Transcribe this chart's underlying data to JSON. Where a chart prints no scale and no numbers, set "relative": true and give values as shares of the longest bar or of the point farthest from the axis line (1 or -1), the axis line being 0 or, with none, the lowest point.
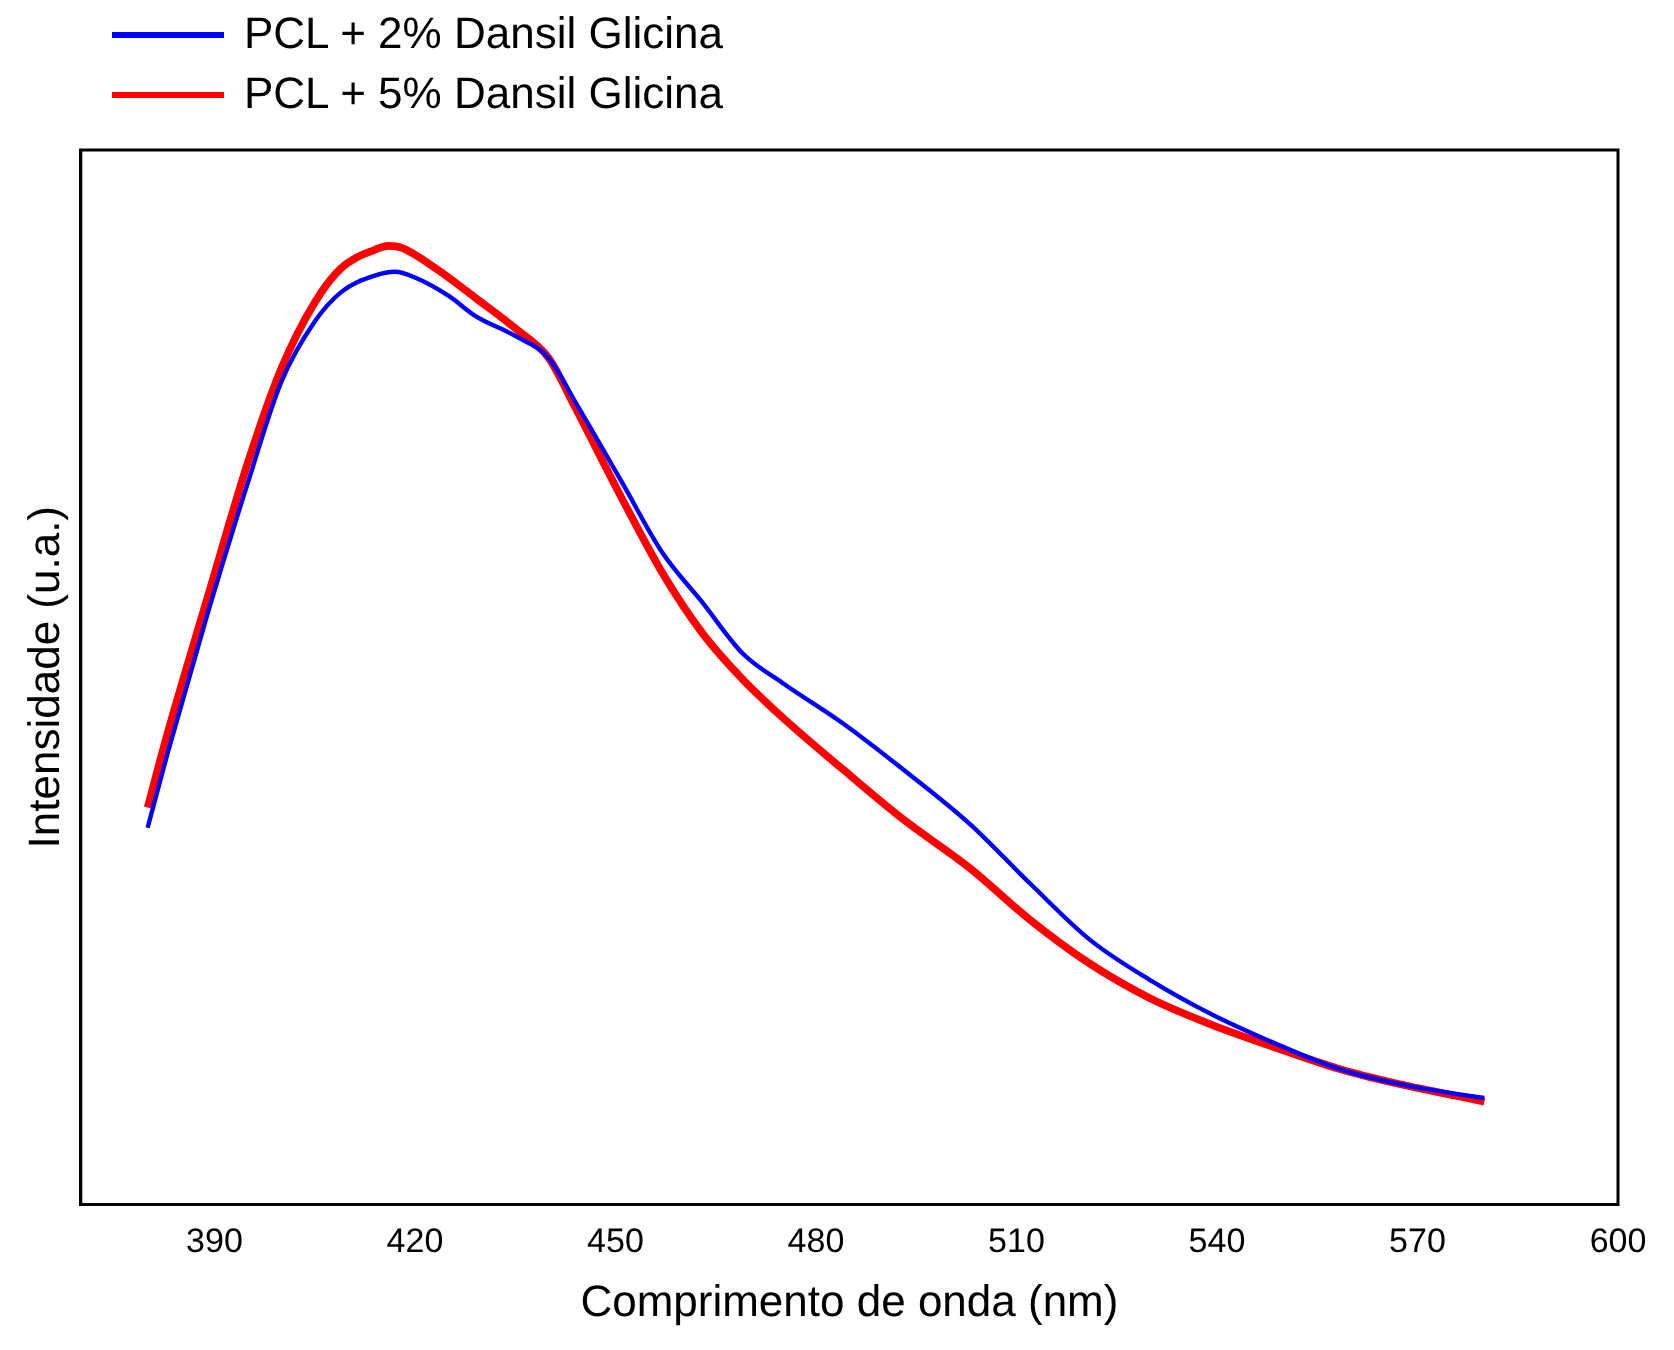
{
  "chart_data": {
    "type": "line",
    "xlabel": "Comprimento de onda (nm)",
    "ylabel": "Intensidade (u.a.)",
    "relative": true,
    "xlim": [
      370,
      600
    ],
    "xticks": [
      390,
      420,
      450,
      480,
      510,
      540,
      570,
      600
    ],
    "grid": false,
    "legend": "top left",
    "marker": "none",
    "line_style": "solid",
    "series": [
      {
        "name": "PCL + 2% Dansil Glicina",
        "color": "#0000ff",
        "x": [
          380,
          383,
          389,
          395,
          400,
          405,
          409,
          414,
          417,
          420,
          425,
          429,
          435,
          440,
          444,
          451,
          457,
          463,
          469,
          475,
          484,
          493,
          503,
          512,
          521,
          530,
          539,
          549,
          558,
          567,
          576,
          580
        ],
        "values": [
          0.393,
          0.471,
          0.617,
          0.753,
          0.858,
          0.921,
          0.952,
          0.969,
          0.973,
          0.967,
          0.948,
          0.927,
          0.906,
          0.883,
          0.837,
          0.753,
          0.68,
          0.628,
          0.575,
          0.544,
          0.502,
          0.454,
          0.397,
          0.335,
          0.276,
          0.234,
          0.199,
          0.167,
          0.142,
          0.126,
          0.115,
          0.111
        ]
      },
      {
        "name": "PCL + 5% Dansil Glicina",
        "color": "#ff0000",
        "x": [
          380,
          383,
          389,
          395,
          400,
          405,
          409,
          414,
          416,
          418,
          423,
          429,
          435,
          440,
          444,
          451,
          457,
          463,
          469,
          475,
          484,
          493,
          503,
          512,
          521,
          530,
          539,
          549,
          558,
          567,
          576,
          580
        ],
        "values": [
          0.414,
          0.492,
          0.634,
          0.774,
          0.872,
          0.941,
          0.977,
          0.996,
          1,
          0.998,
          0.977,
          0.946,
          0.914,
          0.883,
          0.831,
          0.736,
          0.659,
          0.596,
          0.548,
          0.508,
          0.454,
          0.402,
          0.351,
          0.297,
          0.251,
          0.215,
          0.188,
          0.163,
          0.142,
          0.126,
          0.113,
          0.107
        ]
      }
    ]
  }
}
